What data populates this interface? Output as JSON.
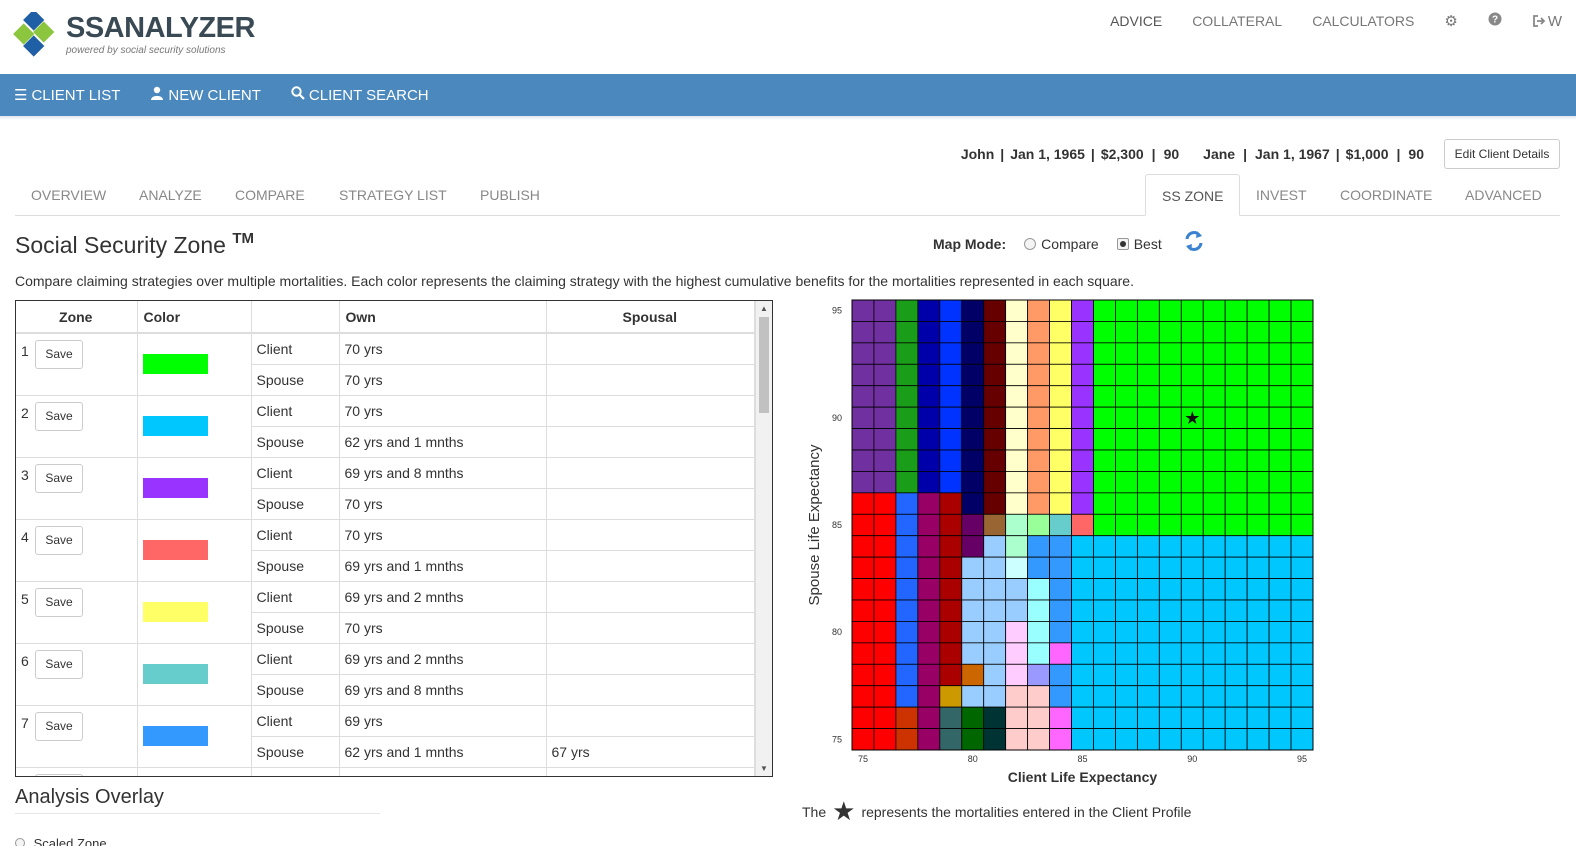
{
  "brand": {
    "name": "SSANALYZER",
    "tagline": "powered by social security solutions"
  },
  "topnav": {
    "advice": "ADVICE",
    "collateral": "COLLATERAL",
    "calculators": "CALCULATORS",
    "logout_partial": "W"
  },
  "icons": {
    "settings": "gear-icon",
    "help": "question-circle-icon",
    "logout": "sign-out-icon",
    "menu": "list-icon",
    "user": "user-icon",
    "search": "search-icon",
    "refresh": "refresh-icon"
  },
  "bluebar": {
    "client_list": "CLIENT LIST",
    "new_client": "NEW CLIENT",
    "client_search": "CLIENT SEARCH"
  },
  "client": {
    "name": "John",
    "dob": "Jan 1, 1965",
    "benefit": "$2,300",
    "le": "90",
    "spouse_name": "Jane",
    "spouse_dob": "Jan 1, 1967",
    "spouse_benefit": "$1,000",
    "spouse_le": "90",
    "sep": "|"
  },
  "edit_button": "Edit Client Details",
  "tabs": {
    "overview": "OVERVIEW",
    "analyze": "ANALYZE",
    "compare": "COMPARE",
    "strategy_list": "STRATEGY LIST",
    "publish": "PUBLISH",
    "ss_zone": "SS ZONE",
    "invest": "INVEST",
    "coordinate": "COORDINATE",
    "advanced": "ADVANCED"
  },
  "heading": {
    "title": "Social Security Zone",
    "tm": "TM"
  },
  "description": "Compare claiming strategies over multiple mortalities. Each color represents the claiming strategy with the highest cumulative benefits for the mortalities represented in each square.",
  "map_mode": {
    "label": "Map Mode:",
    "compare": "Compare",
    "best": "Best",
    "selected": "Best"
  },
  "table": {
    "headers": {
      "zone": "Zone",
      "color": "Color",
      "blank": "",
      "own": "Own",
      "spousal": "Spousal"
    },
    "save_label": "Save",
    "rows": [
      {
        "n": "1",
        "color": "#00ff00",
        "client_own": "70 yrs",
        "client_spousal": "",
        "spouse_own": "70 yrs",
        "spouse_spousal": ""
      },
      {
        "n": "2",
        "color": "#00c8ff",
        "client_own": "70 yrs",
        "client_spousal": "",
        "spouse_own": "62 yrs and 1 mnths",
        "spouse_spousal": ""
      },
      {
        "n": "3",
        "color": "#9933ff",
        "client_own": "69 yrs and 8 mnths",
        "client_spousal": "",
        "spouse_own": "70 yrs",
        "spouse_spousal": ""
      },
      {
        "n": "4",
        "color": "#ff6666",
        "client_own": "70 yrs",
        "client_spousal": "",
        "spouse_own": "69 yrs and 1 mnths",
        "spouse_spousal": ""
      },
      {
        "n": "5",
        "color": "#ffff66",
        "client_own": "69 yrs and 2 mnths",
        "client_spousal": "",
        "spouse_own": "70 yrs",
        "spouse_spousal": ""
      },
      {
        "n": "6",
        "color": "#66cccc",
        "client_own": "69 yrs and 2 mnths",
        "client_spousal": "",
        "spouse_own": "69 yrs and 8 mnths",
        "spouse_spousal": ""
      },
      {
        "n": "7",
        "color": "#3399ff",
        "client_own": "69 yrs",
        "client_spousal": "",
        "spouse_own": "62 yrs and 1 mnths",
        "spouse_spousal": "67 yrs"
      }
    ],
    "role_client": "Client",
    "role_spouse": "Spouse"
  },
  "chart_data": {
    "type": "heatmap",
    "xlabel": "Client Life Expectancy",
    "ylabel": "Spouse Life Expectancy",
    "x_range": [
      75,
      95
    ],
    "y_range": [
      75,
      95
    ],
    "x_ticks": [
      "75",
      "80",
      "85",
      "90",
      "95"
    ],
    "y_ticks": [
      "95",
      "90",
      "85",
      "80",
      "75"
    ],
    "grid": true,
    "marker": {
      "x": 90,
      "y": 90,
      "symbol": "star"
    },
    "palette": {
      "A": "#7030a0",
      "G": "#1a9e1a",
      "N": "#0000aa",
      "B": "#0033ff",
      "K": "#000066",
      "M": "#660000",
      "C": "#ffffcc",
      "O": "#ff9966",
      "Y": "#ffff66",
      "P": "#9933ff",
      "L": "#00ff00",
      "R": "#ff0000",
      "S": "#2266ff",
      "V": "#990066",
      "D": "#aa0000",
      "E": "#660066",
      "F": "#996633",
      "H": "#aaffcc",
      "I": "#99ff99",
      "J": "#66cccc",
      "Q": "#ff6666",
      "T": "#00c8ff",
      "U": "#99ccff",
      "W": "#3399ff",
      "X": "#ccffff",
      "Z": "#99ffff",
      "a": "#ffccff",
      "b": "#ff66ff",
      "c": "#9999ff",
      "d": "#cc6600",
      "e": "#cc9900",
      "f": "#ffcccc",
      "g": "#cc3300",
      "h": "#336666",
      "i": "#006600",
      "j": "#003333"
    },
    "rows": [
      "AAGNBKMCOYPLLLLLLLLLL",
      "AAGNBKMCOYPLLLLLLLLLL",
      "AAGNBKMCOYPLLLLLLLLLL",
      "AAGNBKMCOYPLLLLLLLLLL",
      "AAGNBKMCOYPLLLLLLLLLL",
      "AAGNBKMCOYPLLLLLLLLLL",
      "AAGNBKMCOYPLLLLLLLLLL",
      "AAGNBKMCOYPLLLLLLLLLL",
      "AAGNBKMCOYPLLLLLLLLLL",
      "RRSVDKMCOYPLLLLLLLLLL",
      "RRSVDEFHIJQLLLLLLLLLL",
      "RRSVDEUHWWTTTTTTTTTTT",
      "RRSVDUUXWWTTTTTTTTTTT",
      "RRSVDUUUZWTTTTTTTTTTT",
      "RRSVDUUUZWTTTTTTTTTTT",
      "RRSVDUUaZWTTTTTTTTTTT",
      "RRSVDUUaZbTTTTTTTTTTT",
      "RRSVDdUacWTTTTTTTTTTT",
      "RRSVeUUffWTTTTTTTTTTT",
      "RRgVhijffbTTTTTTTTTTT",
      "RRgVhijffbTTTTTTTTTTT"
    ]
  },
  "footnote": {
    "pre": "The",
    "post": "represents the mortalities entered in the Client Profile"
  },
  "overlay": {
    "title": "Analysis Overlay",
    "option": "Scaled Zone"
  }
}
